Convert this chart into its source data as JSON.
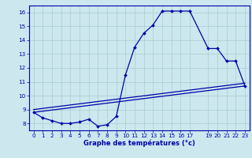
{
  "xlabel": "Graphe des températures (°c)",
  "background_color": "#cce8ee",
  "grid_color": "#aacccc",
  "line_color": "#0000aa",
  "xlim": [
    -0.5,
    23.5
  ],
  "ylim": [
    7.5,
    16.5
  ],
  "yticks": [
    8,
    9,
    10,
    11,
    12,
    13,
    14,
    15,
    16
  ],
  "xticks": [
    0,
    1,
    2,
    3,
    4,
    5,
    6,
    7,
    8,
    9,
    10,
    11,
    12,
    13,
    14,
    15,
    16,
    17,
    19,
    20,
    21,
    22,
    23
  ],
  "line1_x": [
    0,
    1,
    2,
    3,
    4,
    5,
    6,
    7,
    8,
    9,
    10,
    11,
    12,
    13,
    14,
    15,
    16,
    17,
    19,
    20,
    21,
    22,
    23
  ],
  "line1_y": [
    8.8,
    8.4,
    8.2,
    8.0,
    8.0,
    8.1,
    8.3,
    7.8,
    7.9,
    8.5,
    11.5,
    13.5,
    14.5,
    15.1,
    16.1,
    16.1,
    16.1,
    16.1,
    13.4,
    13.4,
    12.5,
    12.5,
    10.7
  ],
  "line2_x": [
    0,
    23
  ],
  "line2_y": [
    9.0,
    10.9
  ],
  "line3_x": [
    0,
    23
  ],
  "line3_y": [
    8.8,
    10.7
  ],
  "xlabel_fontsize": 6.0,
  "tick_fontsize": 5.2
}
